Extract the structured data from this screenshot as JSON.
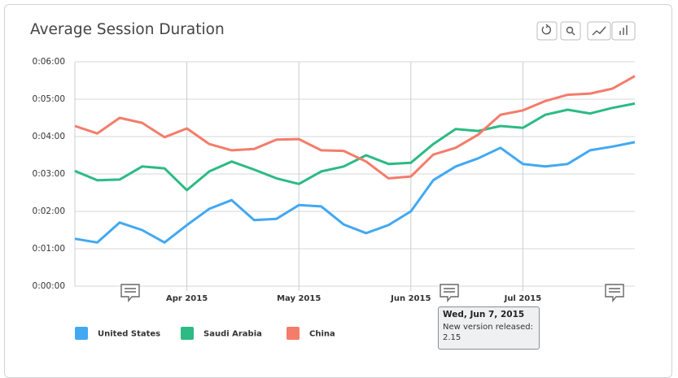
{
  "chart_data": {
    "type": "line",
    "title": "Average Session Duration",
    "categories": [
      null,
      null,
      null,
      null,
      null,
      "Apr 2015",
      null,
      null,
      null,
      null,
      "May 2015",
      null,
      null,
      null,
      null,
      "Jun 2015",
      null,
      null,
      null,
      null,
      "Jul 2015",
      null,
      null,
      null,
      null,
      null
    ],
    "series": [
      {
        "name": "United States",
        "color": "#42a8f2",
        "values": [
          76,
          70,
          102,
          90,
          70,
          98,
          124,
          138,
          106,
          108,
          130,
          128,
          99,
          85,
          98,
          120,
          170,
          192,
          205,
          222,
          196,
          192,
          196,
          218,
          224,
          231
        ]
      },
      {
        "name": "Saudi Arabia",
        "color": "#2dba84",
        "values": [
          185,
          170,
          171,
          192,
          189,
          154,
          184,
          200,
          187,
          173,
          164,
          184,
          192,
          210,
          196,
          198,
          228,
          252,
          249,
          257,
          254,
          275,
          283,
          277,
          286,
          293
        ]
      },
      {
        "name": "China",
        "color": "#f47c6a",
        "values": [
          257,
          245,
          270,
          262,
          239,
          253,
          228,
          218,
          220,
          235,
          236,
          218,
          217,
          200,
          173,
          176,
          211,
          222,
          243,
          275,
          282,
          297,
          307,
          309,
          317,
          337
        ]
      }
    ],
    "ylim": [
      0,
      360
    ],
    "yticks": [
      {
        "value": 0,
        "label": "0:00:00"
      },
      {
        "value": 60,
        "label": "0:01:00"
      },
      {
        "value": 120,
        "label": "0:02:00"
      },
      {
        "value": 180,
        "label": "0:03:00"
      },
      {
        "value": 240,
        "label": "0:04:00"
      },
      {
        "value": 300,
        "label": "0:05:00"
      },
      {
        "value": 360,
        "label": "0:06:00"
      }
    ],
    "grid": true,
    "legend": "bottom",
    "annotation": {
      "title": "Wed, Jun 7, 2015",
      "text": "New version released: 2.15"
    }
  }
}
